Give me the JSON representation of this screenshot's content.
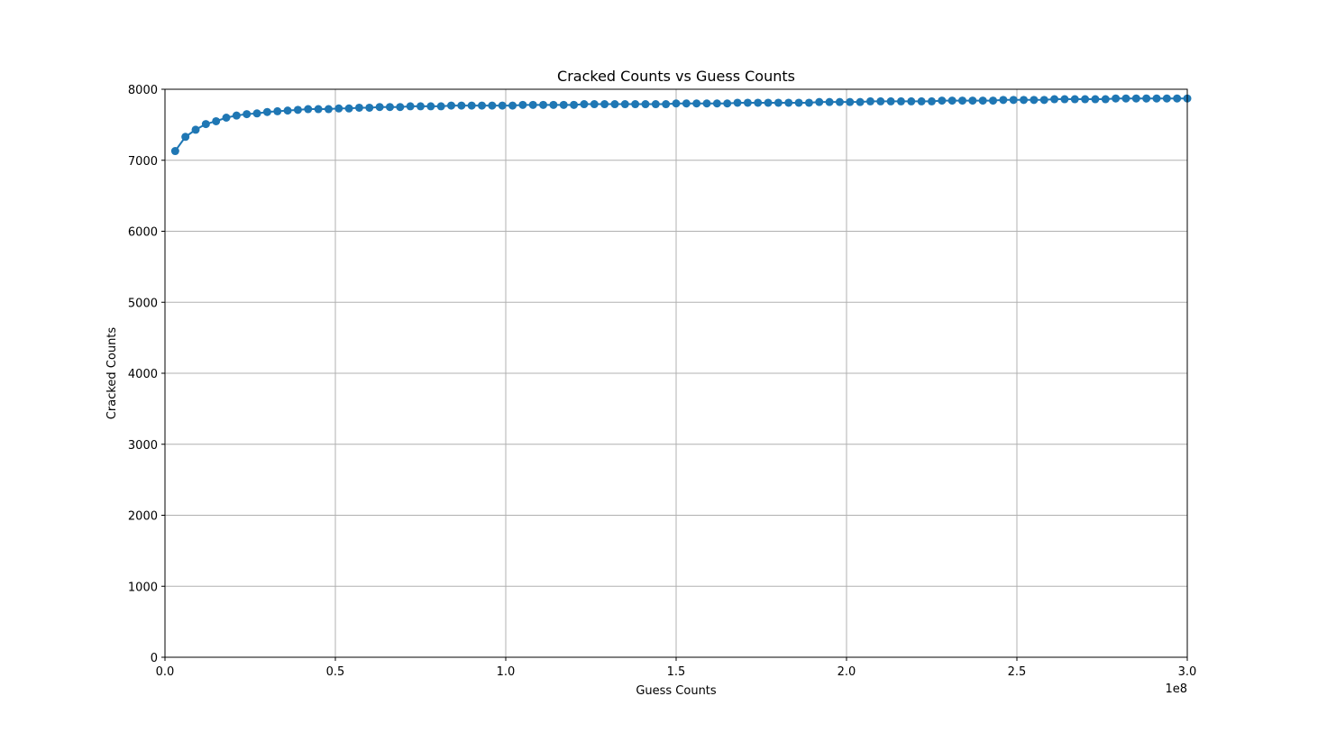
{
  "chart_data": {
    "type": "line",
    "title": "Cracked Counts vs Guess Counts",
    "xlabel": "Guess Counts",
    "ylabel": "Cracked Counts",
    "x_offset_label": "1e8",
    "xlim": [
      0,
      3.0
    ],
    "ylim": [
      0,
      8000
    ],
    "x_ticks": [
      "0.0",
      "0.5",
      "1.0",
      "1.5",
      "2.0",
      "2.5",
      "3.0"
    ],
    "y_ticks": [
      "0",
      "1000",
      "2000",
      "3000",
      "4000",
      "5000",
      "6000",
      "7000",
      "8000"
    ],
    "grid": true,
    "marker": "circle",
    "series_color": "#1f77b4",
    "series": [
      {
        "x": [
          0.03,
          0.06,
          0.09,
          0.12,
          0.15,
          0.18,
          0.21,
          0.24,
          0.27,
          0.3,
          0.33,
          0.36,
          0.39,
          0.42,
          0.45,
          0.48,
          0.51,
          0.54,
          0.57,
          0.6,
          0.63,
          0.66,
          0.69,
          0.72,
          0.75,
          0.78,
          0.81,
          0.84,
          0.87,
          0.9,
          0.93,
          0.96,
          0.99,
          1.02,
          1.05,
          1.08,
          1.11,
          1.14,
          1.17,
          1.2,
          1.23,
          1.26,
          1.29,
          1.32,
          1.35,
          1.38,
          1.41,
          1.44,
          1.47,
          1.5,
          1.53,
          1.56,
          1.59,
          1.62,
          1.65,
          1.68,
          1.71,
          1.74,
          1.77,
          1.8,
          1.83,
          1.86,
          1.89,
          1.92,
          1.95,
          1.98,
          2.01,
          2.04,
          2.07,
          2.1,
          2.13,
          2.16,
          2.19,
          2.22,
          2.25,
          2.28,
          2.31,
          2.34,
          2.37,
          2.4,
          2.43,
          2.46,
          2.49,
          2.52,
          2.55,
          2.58,
          2.61,
          2.64,
          2.67,
          2.7,
          2.73,
          2.76,
          2.79,
          2.82,
          2.85,
          2.88,
          2.91,
          2.94,
          2.97,
          3.0
        ],
        "values": [
          7130,
          7330,
          7430,
          7510,
          7550,
          7600,
          7630,
          7650,
          7660,
          7680,
          7690,
          7700,
          7710,
          7720,
          7720,
          7720,
          7730,
          7730,
          7740,
          7740,
          7750,
          7750,
          7750,
          7760,
          7760,
          7760,
          7760,
          7770,
          7770,
          7770,
          7770,
          7770,
          7770,
          7770,
          7780,
          7780,
          7780,
          7780,
          7780,
          7780,
          7790,
          7790,
          7790,
          7790,
          7790,
          7790,
          7790,
          7790,
          7790,
          7800,
          7800,
          7800,
          7800,
          7800,
          7800,
          7810,
          7810,
          7810,
          7810,
          7810,
          7810,
          7810,
          7810,
          7820,
          7820,
          7820,
          7820,
          7820,
          7830,
          7830,
          7830,
          7830,
          7830,
          7830,
          7830,
          7840,
          7840,
          7840,
          7840,
          7840,
          7840,
          7850,
          7850,
          7850,
          7850,
          7850,
          7860,
          7860,
          7860,
          7860,
          7860,
          7860,
          7870,
          7870,
          7870,
          7870,
          7870,
          7870,
          7870,
          7870
        ]
      }
    ]
  }
}
